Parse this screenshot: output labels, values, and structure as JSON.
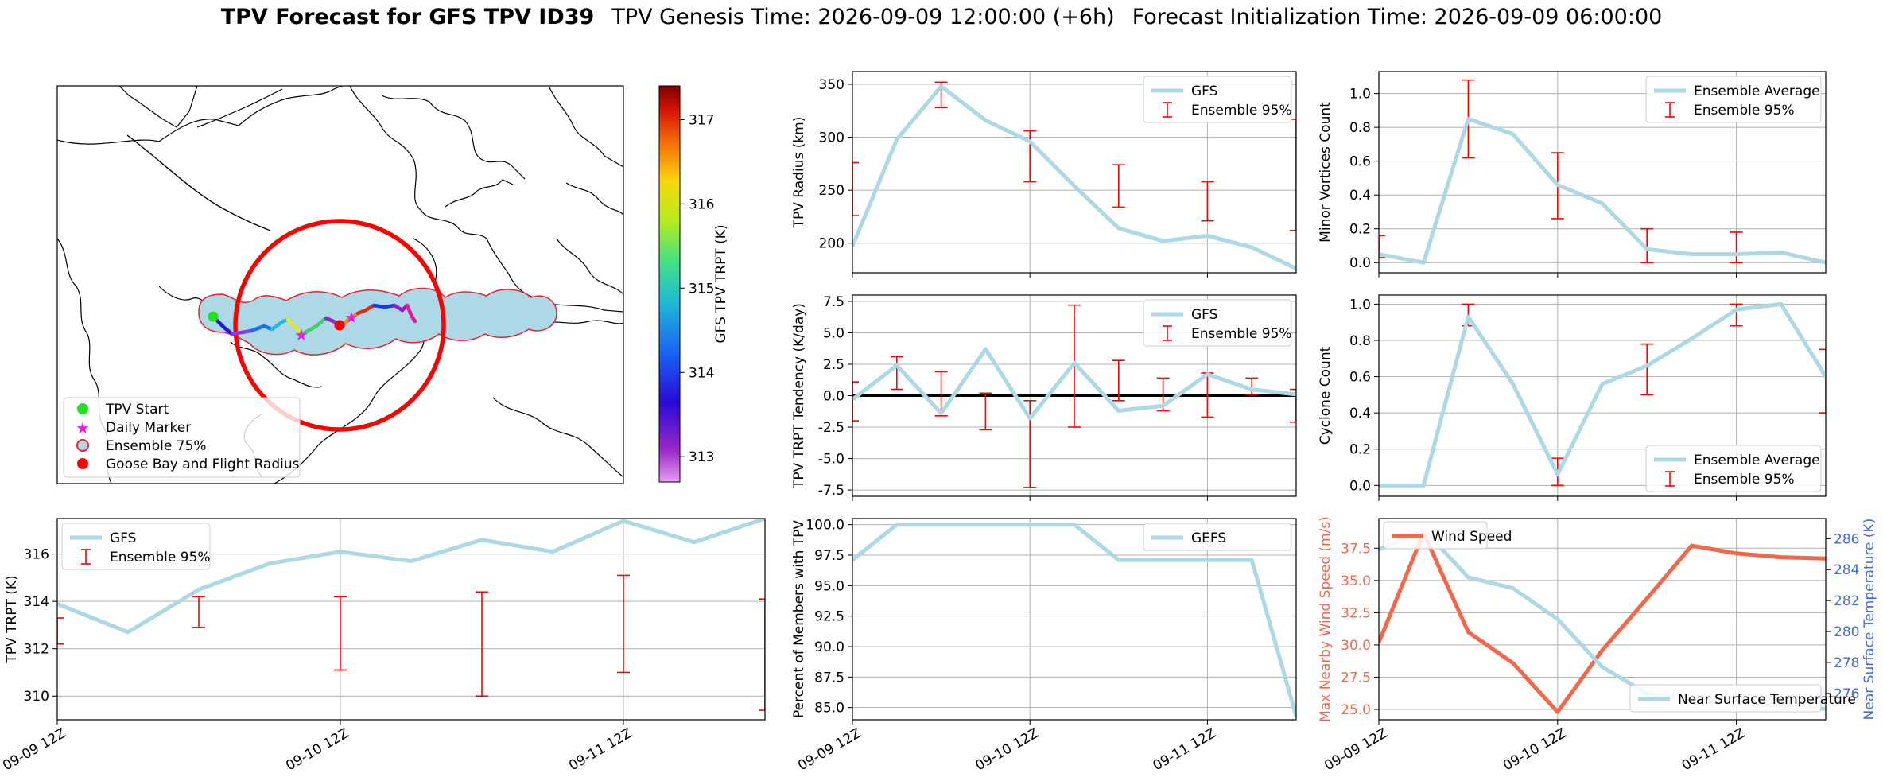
{
  "header": {
    "title_bold": "TPV Forecast for GFS TPV ID39",
    "genesis": "TPV Genesis Time: 2026-09-09 12:00:00 (+6h)",
    "init": "Forecast Initialization Time: 2026-09-09 06:00:00"
  },
  "colors": {
    "gfs": "#add8e6",
    "ensemble": "#ff0000",
    "wind": "#f4674a",
    "temp_axis": "#4169e1"
  },
  "map": {
    "legend": [
      "TPV Start",
      "Daily Marker",
      "Ensemble 75%",
      "Goose Bay and Flight Radius"
    ],
    "colorbar": {
      "label": "GFS TPV TRPT (K)",
      "ticks": [
        313,
        314,
        315,
        316,
        317
      ],
      "range": [
        312.7,
        317.4
      ]
    }
  },
  "time_ticks": [
    "09-09 12Z",
    "09-10 12Z",
    "09-11 12Z"
  ],
  "chart_data": [
    {
      "id": "radius",
      "type": "line",
      "ylabel": "TPV Radius (km)",
      "ylim": [
        172,
        362
      ],
      "yticks": [
        200,
        250,
        300,
        350
      ],
      "x": [
        0,
        0.25,
        0.5,
        0.75,
        1,
        1.25,
        1.5,
        1.75,
        2,
        2.25,
        2.5
      ],
      "series": [
        {
          "name": "GFS",
          "values": [
            197,
            298,
            348,
            316,
            296,
            254,
            214,
            202,
            207,
            196,
            176
          ]
        }
      ],
      "errorbars": {
        "name": "Ensemble 95%",
        "x": [
          0,
          0.5,
          1,
          1.5,
          2,
          2.5
        ],
        "low": [
          226,
          328,
          258,
          234,
          221,
          212
        ],
        "high": [
          276,
          352,
          306,
          274,
          258,
          317
        ]
      },
      "legend": "top-right",
      "grid": true
    },
    {
      "id": "tendency",
      "type": "line",
      "ylabel": "TPV TRPT Tendency (K/day)",
      "ylim": [
        -8,
        8
      ],
      "yticks": [
        -7.5,
        -5.0,
        -2.5,
        0.0,
        2.5,
        5.0,
        7.5
      ],
      "x": [
        0,
        0.25,
        0.5,
        0.75,
        1,
        1.25,
        1.5,
        1.75,
        2,
        2.25,
        2.5
      ],
      "series": [
        {
          "name": "GFS",
          "values": [
            -0.3,
            2.4,
            -1.4,
            3.7,
            -1.8,
            2.6,
            -1.2,
            -0.8,
            1.7,
            0.5,
            0.1
          ]
        }
      ],
      "errorbars": {
        "name": "Ensemble 95%",
        "x": [
          0,
          0.25,
          0.5,
          0.75,
          1,
          1.25,
          1.5,
          1.75,
          2,
          2.25,
          2.5
        ],
        "low": [
          -2,
          0.5,
          -1.6,
          -2.7,
          -7.3,
          -2.5,
          -0.4,
          -1.2,
          -1.7,
          0.1,
          -2.1
        ],
        "high": [
          1.1,
          3.1,
          1.9,
          0.2,
          -0.4,
          7.2,
          2.8,
          1.4,
          1.8,
          1.4,
          0.5
        ]
      },
      "zero_line": true,
      "legend": "top-right",
      "grid": true
    },
    {
      "id": "minor",
      "type": "line",
      "ylabel": "Minor Vortices Count",
      "ylim": [
        -0.06,
        1.13
      ],
      "yticks": [
        0.0,
        0.2,
        0.4,
        0.6,
        0.8,
        1.0
      ],
      "x": [
        0,
        0.25,
        0.5,
        0.75,
        1,
        1.25,
        1.5,
        1.75,
        2,
        2.25,
        2.5
      ],
      "series": [
        {
          "name": "Ensemble Average",
          "values": [
            0.05,
            0.0,
            0.85,
            0.76,
            0.46,
            0.35,
            0.08,
            0.05,
            0.05,
            0.06,
            0.0
          ]
        }
      ],
      "errorbars": {
        "name": "Ensemble 95%",
        "x": [
          0,
          0.5,
          1,
          1.5,
          2
        ],
        "low": [
          0.03,
          0.62,
          0.26,
          0.0,
          0.0
        ],
        "high": [
          0.16,
          1.08,
          0.65,
          0.2,
          0.18
        ]
      },
      "legend": "top-right",
      "grid": true
    },
    {
      "id": "cyclone",
      "type": "line",
      "ylabel": "Cyclone Count",
      "ylim": [
        -0.06,
        1.05
      ],
      "yticks": [
        0.0,
        0.2,
        0.4,
        0.6,
        0.8,
        1.0
      ],
      "x": [
        0,
        0.25,
        0.5,
        0.75,
        1,
        1.25,
        1.5,
        1.75,
        2,
        2.25,
        2.5
      ],
      "series": [
        {
          "name": "Ensemble Average",
          "values": [
            0.0,
            0.0,
            0.93,
            0.56,
            0.06,
            0.56,
            0.66,
            0.81,
            0.97,
            1.0,
            0.6
          ]
        }
      ],
      "errorbars": {
        "name": "Ensemble 95%",
        "x": [
          0,
          0.5,
          1,
          1.5,
          2,
          2.5
        ],
        "low": [
          0.0,
          0.88,
          0.0,
          0.5,
          0.88,
          0.4
        ],
        "high": [
          0.0,
          1.0,
          0.15,
          0.78,
          1.0,
          0.75
        ]
      },
      "legend": "bottom-right",
      "grid": true
    },
    {
      "id": "trpt",
      "type": "line",
      "ylabel": "TPV TRPT (K)",
      "ylim": [
        309,
        317.5
      ],
      "yticks": [
        310,
        312,
        314,
        316
      ],
      "x": [
        0,
        0.25,
        0.5,
        0.75,
        1,
        1.25,
        1.5,
        1.75,
        2,
        2.25,
        2.5
      ],
      "series": [
        {
          "name": "GFS",
          "values": [
            313.9,
            312.7,
            314.5,
            315.6,
            316.1,
            315.7,
            316.6,
            316.1,
            317.4,
            316.5,
            317.5
          ]
        }
      ],
      "errorbars": {
        "name": "Ensemble 95%",
        "x": [
          0,
          0.5,
          1,
          1.5,
          2,
          2.5
        ],
        "low": [
          312.2,
          312.9,
          311.1,
          310.0,
          311.0,
          309.4
        ],
        "high": [
          313.3,
          314.2,
          314.2,
          314.4,
          315.1,
          314.1
        ]
      },
      "legend": "top-left",
      "grid": true
    },
    {
      "id": "members",
      "type": "line",
      "ylabel": "Percent of Members with TPV",
      "ylim": [
        84,
        100.5
      ],
      "yticks": [
        85.0,
        87.5,
        90.0,
        92.5,
        95.0,
        97.5,
        100.0
      ],
      "x": [
        0,
        0.25,
        0.5,
        0.75,
        1,
        1.25,
        1.5,
        1.75,
        2,
        2.25,
        2.5
      ],
      "series": [
        {
          "name": "GEFS",
          "values": [
            97.1,
            100,
            100,
            100,
            100,
            100,
            97.1,
            97.1,
            97.1,
            97.1,
            84.3
          ]
        }
      ],
      "legend": "top-right",
      "grid": true
    },
    {
      "id": "wind",
      "type": "line",
      "ylabel": "Max Nearby Wind Speed (m/s)",
      "ylim": [
        24.2,
        39.8
      ],
      "yticks": [
        25.0,
        27.5,
        30.0,
        32.5,
        35.0,
        37.5
      ],
      "y2label": "Near Surface Temperature (K)",
      "y2lim": [
        274.3,
        287.3
      ],
      "y2ticks": [
        276,
        278,
        280,
        282,
        284,
        286
      ],
      "x": [
        0,
        0.25,
        0.5,
        0.75,
        1,
        1.25,
        1.5,
        1.75,
        2,
        2.25,
        2.5
      ],
      "series": [
        {
          "name": "Wind Speed",
          "axis": "left",
          "values": [
            30.2,
            38.7,
            31.0,
            28.6,
            24.8,
            29.6,
            33.6,
            37.7,
            37.1,
            36.8,
            36.7
          ]
        },
        {
          "name": "Near Surface Temperature",
          "axis": "right",
          "values": [
            285.3,
            286.6,
            283.5,
            282.8,
            280.8,
            277.7,
            276.0,
            275.6,
            275.4,
            275.2,
            275.0
          ]
        }
      ],
      "legend": "top-left / bottom-right",
      "grid": true
    }
  ]
}
